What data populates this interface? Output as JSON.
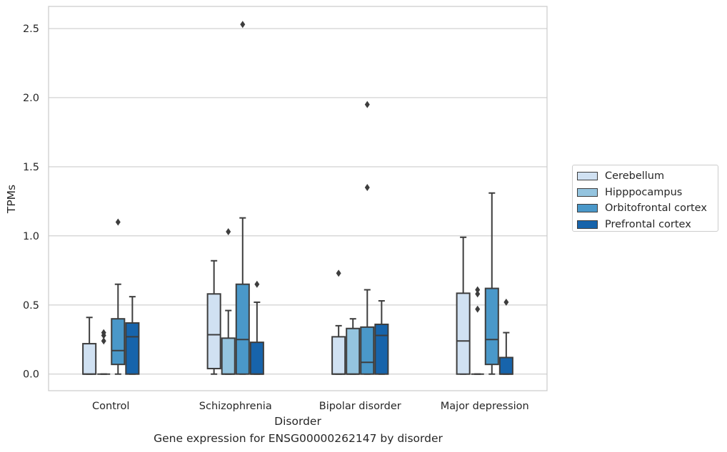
{
  "chart_data": {
    "type": "boxplot",
    "xlabel": "Disorder",
    "ylabel": "TPMs",
    "caption": "Gene expression for ENSG00000262147 by disorder",
    "categories": [
      "Control",
      "Schizophrenia",
      "Bipolar disorder",
      "Major depression"
    ],
    "ylim": [
      -0.12,
      2.66
    ],
    "yticks": [
      0.0,
      0.5,
      1.0,
      1.5,
      2.0,
      2.5
    ],
    "ytick_labels": [
      "0.0",
      "0.5",
      "1.0",
      "1.5",
      "2.0",
      "2.5"
    ],
    "grid": "horizontal",
    "legend_position": "right",
    "series": [
      {
        "name": "Cerebellum",
        "color": "#d0e1f2",
        "boxes": [
          {
            "low": 0.0,
            "q1": 0.0,
            "median": 0.0,
            "q3": 0.22,
            "high": 0.41,
            "outliers": []
          },
          {
            "low": 0.0,
            "q1": 0.04,
            "median": 0.285,
            "q3": 0.58,
            "high": 0.82,
            "outliers": []
          },
          {
            "low": 0.0,
            "q1": 0.0,
            "median": 0.0,
            "q3": 0.27,
            "high": 0.35,
            "outliers": [
              0.73
            ]
          },
          {
            "low": 0.0,
            "q1": 0.0,
            "median": 0.24,
            "q3": 0.585,
            "high": 0.99,
            "outliers": []
          }
        ]
      },
      {
        "name": "Hipppocampus",
        "color": "#94c4df",
        "boxes": [
          {
            "low": 0.0,
            "q1": 0.0,
            "median": 0.0,
            "q3": 0.0,
            "high": 0.0,
            "outliers": [
              0.24,
              0.28,
              0.3
            ]
          },
          {
            "low": 0.0,
            "q1": 0.0,
            "median": 0.0,
            "q3": 0.26,
            "high": 0.46,
            "outliers": [
              1.03
            ]
          },
          {
            "low": 0.0,
            "q1": 0.0,
            "median": 0.0,
            "q3": 0.33,
            "high": 0.4,
            "outliers": []
          },
          {
            "low": 0.0,
            "q1": 0.0,
            "median": 0.0,
            "q3": 0.0,
            "high": 0.0,
            "outliers": [
              0.47,
              0.58,
              0.61
            ]
          }
        ]
      },
      {
        "name": "Orbitofrontal cortex",
        "color": "#4a98c9",
        "boxes": [
          {
            "low": 0.0,
            "q1": 0.07,
            "median": 0.17,
            "q3": 0.4,
            "high": 0.65,
            "outliers": [
              1.1
            ]
          },
          {
            "low": 0.0,
            "q1": 0.0,
            "median": 0.25,
            "q3": 0.65,
            "high": 1.13,
            "outliers": [
              2.53
            ]
          },
          {
            "low": 0.0,
            "q1": 0.0,
            "median": 0.085,
            "q3": 0.34,
            "high": 0.61,
            "outliers": [
              1.35,
              1.95
            ]
          },
          {
            "low": 0.0,
            "q1": 0.07,
            "median": 0.25,
            "q3": 0.62,
            "high": 1.31,
            "outliers": []
          }
        ]
      },
      {
        "name": "Prefrontal cortex",
        "color": "#1764ab",
        "boxes": [
          {
            "low": 0.0,
            "q1": 0.0,
            "median": 0.27,
            "q3": 0.37,
            "high": 0.56,
            "outliers": []
          },
          {
            "low": 0.0,
            "q1": 0.0,
            "median": 0.0,
            "q3": 0.23,
            "high": 0.52,
            "outliers": [
              0.65
            ]
          },
          {
            "low": 0.0,
            "q1": 0.0,
            "median": 0.28,
            "q3": 0.36,
            "high": 0.53,
            "outliers": []
          },
          {
            "low": 0.0,
            "q1": 0.0,
            "median": 0.0,
            "q3": 0.12,
            "high": 0.3,
            "outliers": [
              0.52
            ]
          }
        ]
      }
    ]
  }
}
